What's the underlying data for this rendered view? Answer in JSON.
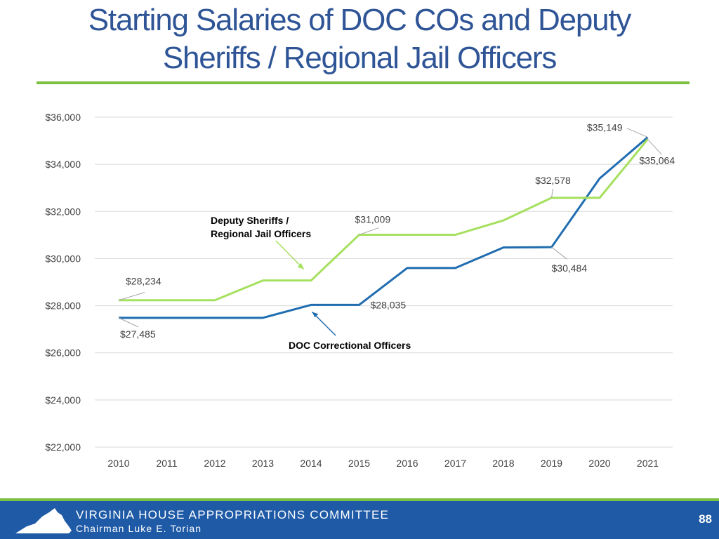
{
  "slide": {
    "title_line1": "Starting Salaries of DOC COs and Deputy",
    "title_line2": "Sheriffs / Regional Jail Officers",
    "footer_org": "VIRGINIA HOUSE APPROPRIATIONS COMMITTEE",
    "footer_chair": "Chairman Luke E. Torian",
    "page_number": "88",
    "accent_color": "#7dc142",
    "title_color": "#2f5597",
    "footer_color": "#1f5aa6",
    "logo_icon": "virginia-state-outline-icon"
  },
  "chart_data": {
    "type": "line",
    "title": "",
    "xlabel": "",
    "ylabel": "",
    "categories": [
      "2010",
      "2011",
      "2012",
      "2013",
      "2014",
      "2015",
      "2016",
      "2017",
      "2018",
      "2019",
      "2020",
      "2021"
    ],
    "ylim": [
      22000,
      36000
    ],
    "yticks": [
      22000,
      24000,
      26000,
      28000,
      30000,
      32000,
      34000,
      36000
    ],
    "ytick_labels": [
      "$22,000",
      "$24,000",
      "$26,000",
      "$28,000",
      "$30,000",
      "$32,000",
      "$34,000",
      "$36,000"
    ],
    "grid": true,
    "legend": "none",
    "series": [
      {
        "name": "DOC Correctional Officers",
        "color": "#1f6db0",
        "values": [
          27485,
          27485,
          27485,
          27485,
          28035,
          28035,
          29600,
          29600,
          30470,
          30484,
          33400,
          35149
        ]
      },
      {
        "name": "Deputy Sheriffs / Regional Jail Officers",
        "color": "#a6e05f",
        "values": [
          28234,
          28234,
          28234,
          29070,
          29070,
          31009,
          31009,
          31009,
          31620,
          32578,
          32578,
          35064
        ]
      }
    ],
    "data_labels": [
      {
        "text": "$27,485",
        "series": 0,
        "index": 0
      },
      {
        "text": "$28,035",
        "series": 0,
        "index": 5
      },
      {
        "text": "$30,484",
        "series": 0,
        "index": 9
      },
      {
        "text": "$35,149",
        "series": 0,
        "index": 11
      },
      {
        "text": "$28,234",
        "series": 1,
        "index": 0
      },
      {
        "text": "$31,009",
        "series": 1,
        "index": 5
      },
      {
        "text": "$32,578",
        "series": 1,
        "index": 9
      },
      {
        "text": "$35,064",
        "series": 1,
        "index": 11
      }
    ],
    "annotations": [
      {
        "lines": [
          "Deputy Sheriffs /",
          "Regional Jail Officers"
        ],
        "series": 1
      },
      {
        "lines": [
          "DOC Correctional Officers"
        ],
        "series": 0
      }
    ]
  }
}
